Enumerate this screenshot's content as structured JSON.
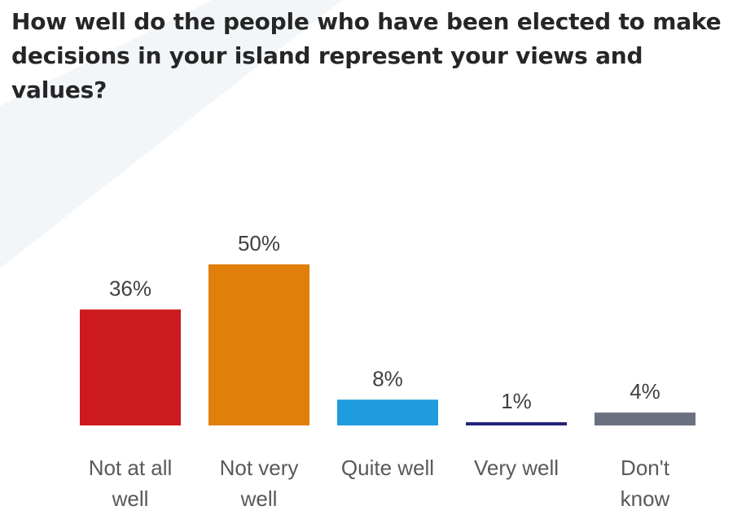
{
  "chart_data": {
    "type": "bar",
    "title": "How well do the people who have been elected to make decisions in your island represent your views and values?",
    "categories": [
      [
        "Not at all",
        "well"
      ],
      [
        "Not very",
        "well"
      ],
      [
        "Quite well"
      ],
      [
        "Very well"
      ],
      [
        "Don't",
        "know"
      ]
    ],
    "values": [
      36,
      50,
      8,
      1,
      4
    ],
    "value_labels": [
      "36%",
      "50%",
      "8%",
      "1%",
      "4%"
    ],
    "colors": [
      "#cc1a1f",
      "#e07f0a",
      "#1f9be0",
      "#23237a",
      "#6b7180"
    ],
    "xlabel": "",
    "ylabel": "",
    "ylim": [
      0,
      50
    ],
    "grid": false,
    "legend": "none"
  }
}
